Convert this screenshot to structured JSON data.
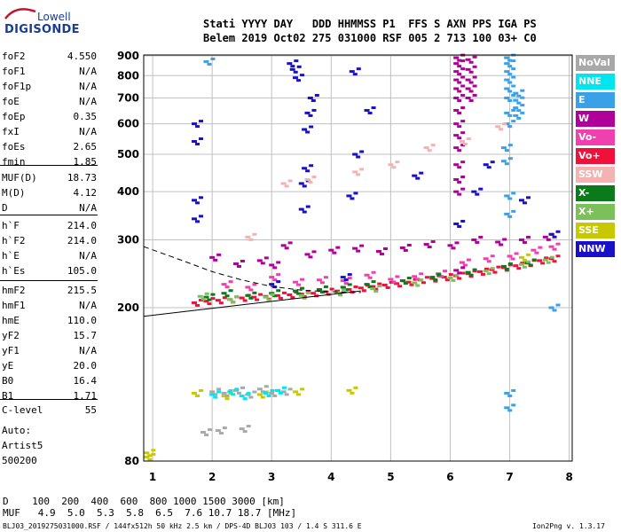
{
  "logo": {
    "top": "Lowell",
    "bottom": "DIGISONDE"
  },
  "header": {
    "line1": "Stati YYYY DAY   DDD HHMMSS P1  FFS S AXN PPS IGA PS",
    "line2": "Belem 2019 Oct02 275 031000 RSF 005 2 713 100 03+ C0"
  },
  "params": {
    "group1": [
      {
        "label": "foF2",
        "value": "4.550"
      },
      {
        "label": "foF1",
        "value": "N/A"
      },
      {
        "label": "foF1p",
        "value": "N/A"
      },
      {
        "label": "foE",
        "value": "N/A"
      },
      {
        "label": "foEp",
        "value": "0.35"
      },
      {
        "label": "fxI",
        "value": "N/A"
      },
      {
        "label": "foEs",
        "value": "2.65"
      },
      {
        "label": "fmin",
        "value": "1.85"
      }
    ],
    "group2": [
      {
        "label": "MUF(D)",
        "value": "18.73"
      },
      {
        "label": "M(D)",
        "value": "4.12"
      },
      {
        "label": "D",
        "value": "N/A"
      }
    ],
    "group3": [
      {
        "label": "h`F",
        "value": "214.0"
      },
      {
        "label": "h`F2",
        "value": "214.0"
      },
      {
        "label": "h`E",
        "value": "N/A"
      },
      {
        "label": "h`Es",
        "value": "105.0"
      }
    ],
    "group4": [
      {
        "label": "hmF2",
        "value": "215.5"
      },
      {
        "label": "hmF1",
        "value": "N/A"
      },
      {
        "label": "hmE",
        "value": "110.0"
      },
      {
        "label": "yF2",
        "value": "15.7"
      },
      {
        "label": "yF1",
        "value": "N/A"
      },
      {
        "label": "yE",
        "value": "20.0"
      },
      {
        "label": "B0",
        "value": "16.4"
      },
      {
        "label": "B1",
        "value": "1.71"
      }
    ],
    "group5": [
      {
        "label": "C-level",
        "value": "55"
      }
    ]
  },
  "autoscale": {
    "line1": "Auto:",
    "line2": "Artist5",
    "line3": "500200"
  },
  "legend": [
    {
      "label": "NoVal",
      "color": "#a8a8a8"
    },
    {
      "label": "NNE",
      "color": "#00e5f0"
    },
    {
      "label": "E",
      "color": "#3aa0e8"
    },
    {
      "label": "W",
      "color": "#b0009a"
    },
    {
      "label": "Vo-",
      "color": "#f040b0"
    },
    {
      "label": "Vo+",
      "color": "#f0103a"
    },
    {
      "label": "SSW",
      "color": "#f5b2b2"
    },
    {
      "label": "X-",
      "color": "#0a7a1a"
    },
    {
      "label": "X+",
      "color": "#7cc05a"
    },
    {
      "label": "SSE",
      "color": "#c8c800"
    },
    {
      "label": "NNW",
      "color": "#1a10c8"
    }
  ],
  "footer": {
    "distances": "D    100  200  400  600  800 1000 1500 3000 [km]",
    "mufs": "MUF   4.9  5.0  5.3  5.8  6.5  7.6 10.7 18.7 [MHz]",
    "file_line": "BLJ03_2019275031000.RSF / 144fx512h 50 kHz 2.5 km / DPS-4D BLJ03 103 / 1.4 S 311.6 E",
    "version": "Ion2Png v. 1.3.17"
  },
  "chart_data": {
    "type": "scatter",
    "title": "",
    "xlabel": "",
    "ylabel": "",
    "xlim": [
      0.85,
      8.05
    ],
    "ylim": [
      80,
      905
    ],
    "xticks": [
      1,
      2,
      3,
      4,
      5,
      6,
      7,
      8
    ],
    "yticks": [
      80,
      200,
      300,
      400,
      500,
      600,
      700,
      800,
      900
    ],
    "y_scale": "log",
    "grid": true,
    "series": [
      {
        "color": "#f0103a",
        "kind": "trace",
        "x": [
          1.7,
          1.9,
          2.1,
          2.3,
          2.5,
          2.7,
          2.9,
          3.1,
          3.3,
          3.5,
          3.7,
          3.9,
          4.1,
          4.3,
          4.5,
          4.7,
          4.9,
          5.1,
          5.3,
          5.5,
          5.7,
          5.9,
          6.1,
          6.3,
          6.5,
          6.7,
          6.9,
          7.1,
          7.3,
          7.5,
          7.7
        ],
        "y": [
          206,
          208,
          209,
          210,
          212,
          213,
          214,
          215,
          216,
          217,
          218,
          220,
          221,
          223,
          225,
          227,
          229,
          231,
          233,
          236,
          238,
          240,
          242,
          245,
          248,
          251,
          254,
          257,
          261,
          265,
          268
        ]
      },
      {
        "color": "#f040b0",
        "kind": "trace",
        "x": [
          2.2,
          2.6,
          3.0,
          3.4,
          3.8,
          4.2,
          4.6,
          5.0,
          5.4,
          5.8,
          6.2,
          6.6,
          7.0,
          7.4,
          7.7
        ],
        "y": [
          230,
          226,
          240,
          233,
          236,
          235,
          243,
          237,
          241,
          245,
          262,
          268,
          272,
          282,
          288
        ]
      },
      {
        "color": "#b0009a",
        "kind": "trace",
        "x": [
          2.0,
          2.4,
          2.8,
          3.0,
          3.2,
          3.6,
          4.0,
          4.4,
          4.8,
          5.2,
          5.6,
          6.0,
          6.4,
          6.8,
          7.2,
          7.6
        ],
        "y": [
          270,
          260,
          265,
          258,
          290,
          275,
          282,
          285,
          280,
          286,
          292,
          290,
          300,
          296,
          300,
          305
        ]
      },
      {
        "color": "#0a7a1a",
        "kind": "trace",
        "x": [
          1.9,
          2.2,
          2.6,
          3.0,
          3.4,
          3.8,
          4.2,
          4.6,
          5.2,
          5.7,
          6.3,
          6.9,
          7.3
        ],
        "y": [
          213,
          218,
          215,
          218,
          221,
          223,
          226,
          230,
          235,
          240,
          247,
          256,
          262
        ]
      },
      {
        "color": "#7cc05a",
        "kind": "trace",
        "x": [
          1.8,
          2.3,
          2.9,
          3.5,
          4.1,
          4.7,
          5.4,
          6.0,
          6.6,
          7.2,
          7.6
        ],
        "y": [
          214,
          210,
          213,
          215,
          219,
          224,
          232,
          239,
          249,
          259,
          266
        ]
      },
      {
        "color": "#1a10c8",
        "kind": "trace",
        "x": [
          1.7,
          1.7,
          1.7,
          1.7,
          3.0,
          3.3,
          3.35,
          3.4,
          3.5,
          3.5,
          3.55,
          3.55,
          3.6,
          3.65,
          4.2,
          4.3,
          4.35,
          4.4,
          4.6,
          5.4,
          6.1,
          6.4,
          6.6,
          7.2,
          7.7
        ],
        "y": [
          340,
          380,
          540,
          600,
          230,
          860,
          830,
          790,
          360,
          420,
          460,
          580,
          640,
          700,
          240,
          390,
          820,
          500,
          650,
          440,
          330,
          400,
          470,
          380,
          310
        ]
      },
      {
        "color": "#b0009a",
        "kind": "trace",
        "x": [
          6.1,
          6.1,
          6.1,
          6.1,
          6.1,
          6.1,
          6.1,
          6.1,
          6.1,
          6.1,
          6.1,
          6.1,
          6.1,
          6.1,
          6.3,
          6.3,
          6.3,
          6.3,
          6.3
        ],
        "y": [
          400,
          430,
          470,
          520,
          560,
          600,
          650,
          700,
          740,
          780,
          820,
          860,
          890,
          250,
          880,
          830,
          780,
          740,
          700
        ]
      },
      {
        "color": "#3aa0e8",
        "kind": "trace",
        "x": [
          6.95,
          6.95,
          6.95,
          6.95,
          6.95,
          6.95,
          6.95,
          6.95,
          6.95,
          6.95,
          6.95,
          6.95,
          7.1,
          7.1,
          7.1,
          7.1,
          6.9,
          6.9,
          1.9,
          7.7
        ],
        "y": [
          600,
          640,
          700,
          740,
          780,
          820,
          860,
          890,
          350,
          390,
          110,
          120,
          630,
          660,
          690,
          720,
          520,
          480,
          870,
          200
        ]
      },
      {
        "color": "#f5b2b2",
        "kind": "trace",
        "x": [
          2.6,
          3.2,
          3.6,
          4.4,
          5.0,
          5.6,
          6.2,
          6.8
        ],
        "y": [
          305,
          420,
          430,
          450,
          470,
          520,
          540,
          590
        ]
      },
      {
        "color": "#c8c800",
        "kind": "trace",
        "x": [
          0.9,
          0.9,
          1.7,
          2.2,
          2.8,
          3.4,
          4.3,
          7.2
        ],
        "y": [
          82,
          84,
          120,
          118,
          119,
          121,
          122,
          270
        ]
      },
      {
        "color": "#a8a8a8",
        "kind": "trace",
        "x": [
          2.0,
          2.2,
          2.4,
          2.6,
          2.8,
          3.0,
          3.2,
          1.85,
          2.1,
          2.5
        ],
        "y": [
          121,
          120,
          122,
          119,
          123,
          120,
          121,
          95,
          96,
          97
        ]
      },
      {
        "color": "#00e5f0",
        "kind": "trace",
        "x": [
          2.0,
          2.3,
          2.5,
          2.9,
          3.1
        ],
        "y": [
          119,
          121,
          118,
          120,
          122
        ]
      }
    ],
    "profile": {
      "x": [
        0.85,
        4.5
      ],
      "y": [
        190,
        221
      ]
    },
    "profile_dashed": {
      "x": [
        0.85,
        1.5,
        2.0,
        2.5,
        3.0,
        3.5,
        4.0,
        4.5
      ],
      "y": [
        288,
        265,
        248,
        236,
        227,
        222,
        220,
        219
      ]
    }
  }
}
